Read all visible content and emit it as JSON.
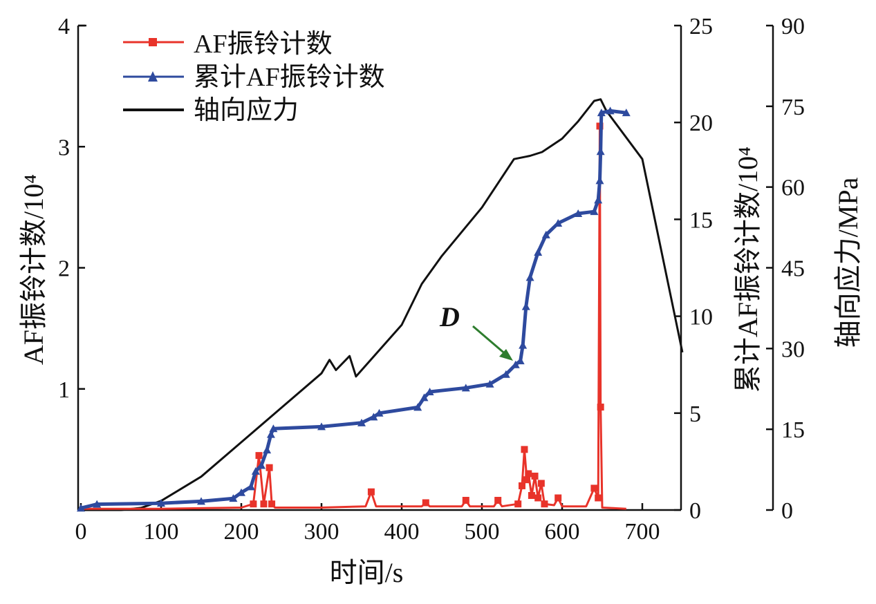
{
  "chart_data": {
    "type": "line",
    "title": "",
    "xlabel": "时间/s",
    "ylabel_left": "AF振铃计数/10⁴",
    "ylabel_right1": "累计AF振铃计数/10⁴",
    "ylabel_right2": "轴向应力/MPa",
    "xlim": [
      0,
      750
    ],
    "ylim_left": [
      0,
      4
    ],
    "ylim_right1": [
      0,
      25
    ],
    "ylim_right2": [
      0,
      90
    ],
    "x_ticks": [
      "0",
      "100",
      "200",
      "300",
      "400",
      "500",
      "600",
      "700"
    ],
    "y_left_ticks": [
      "1",
      "2",
      "3",
      "4"
    ],
    "y_right1_ticks": [
      "0",
      "5",
      "10",
      "15",
      "20",
      "25"
    ],
    "y_right2_ticks": [
      "0",
      "15",
      "30",
      "45",
      "60",
      "75",
      "90"
    ],
    "legend_position": "top-left",
    "legend": [
      "AF振铃计数",
      "累计AF振铃计数",
      "轴向应力"
    ],
    "annotation": {
      "label": "D",
      "x": 545,
      "y_right1": 7.7
    },
    "colors": {
      "af": "#e8332a",
      "cum": "#2e4a9e",
      "stress": "#111111",
      "annotation": "#2e7d2e"
    },
    "series": [
      {
        "name": "AF振铃计数",
        "axis": "left",
        "x": [
          0,
          100,
          200,
          215,
          222,
          228,
          235,
          238,
          242,
          300,
          355,
          362,
          368,
          425,
          430,
          435,
          475,
          480,
          485,
          515,
          520,
          525,
          545,
          550,
          553,
          556,
          558,
          562,
          566,
          570,
          574,
          578,
          590,
          595,
          600,
          630,
          640,
          645,
          647,
          648,
          650,
          680
        ],
        "y": [
          0.01,
          0.01,
          0.02,
          0.05,
          0.45,
          0.05,
          0.35,
          0.05,
          0.02,
          0.02,
          0.03,
          0.15,
          0.03,
          0.03,
          0.06,
          0.03,
          0.03,
          0.08,
          0.03,
          0.03,
          0.08,
          0.03,
          0.05,
          0.2,
          0.5,
          0.25,
          0.3,
          0.12,
          0.28,
          0.1,
          0.22,
          0.05,
          0.04,
          0.1,
          0.03,
          0.03,
          0.18,
          0.1,
          3.17,
          0.85,
          0.02,
          0.01
        ]
      },
      {
        "name": "累计AF振铃计数",
        "axis": "right1",
        "x": [
          0,
          20,
          100,
          150,
          190,
          200,
          212,
          218,
          225,
          232,
          237,
          240,
          300,
          350,
          365,
          372,
          420,
          428,
          435,
          480,
          510,
          530,
          542,
          548,
          551,
          555,
          560,
          570,
          580,
          595,
          620,
          640,
          645,
          647,
          648,
          649,
          660,
          680
        ],
        "y": [
          0.1,
          0.3,
          0.35,
          0.45,
          0.6,
          0.9,
          1.2,
          2.0,
          2.3,
          3.1,
          3.9,
          4.2,
          4.3,
          4.5,
          4.8,
          5.0,
          5.3,
          5.8,
          6.1,
          6.3,
          6.5,
          7.0,
          7.5,
          7.7,
          8.5,
          10.5,
          12.0,
          13.3,
          14.2,
          14.8,
          15.3,
          15.4,
          16.0,
          17.0,
          18.5,
          20.5,
          20.6,
          20.5
        ]
      },
      {
        "name": "轴向应力",
        "axis": "right2",
        "x": [
          0,
          50,
          75,
          100,
          150,
          200,
          250,
          300,
          310,
          318,
          335,
          343,
          400,
          425,
          450,
          500,
          540,
          560,
          575,
          600,
          620,
          640,
          648,
          655,
          700,
          750
        ],
        "y": [
          0,
          0,
          0.4,
          1.7,
          6.2,
          12.6,
          19.0,
          25.4,
          27.9,
          26.0,
          28.6,
          24.8,
          34.4,
          42.0,
          47.2,
          56.2,
          65.2,
          65.8,
          66.5,
          69.0,
          72.2,
          76.0,
          76.3,
          74.2,
          65.2,
          29.3
        ]
      }
    ]
  }
}
